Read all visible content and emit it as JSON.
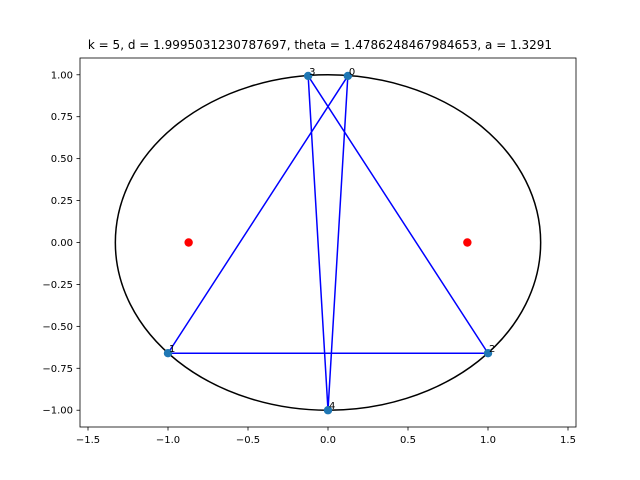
{
  "chart_data": {
    "type": "scatter",
    "title": "k = 5, d = 1.9995031230787697, theta = 1.4786248467984653, a = 1.3291",
    "xlim": [
      -1.55,
      1.55
    ],
    "ylim": [
      -1.1,
      1.1
    ],
    "x_ticks": [
      -1.5,
      -1.0,
      -0.5,
      0.0,
      0.5,
      1.0,
      1.5
    ],
    "x_tick_labels": [
      "−1.5",
      "−1.0",
      "−0.5",
      "0.0",
      "0.5",
      "1.0",
      "1.5"
    ],
    "y_ticks": [
      -1.0,
      -0.75,
      -0.5,
      -0.25,
      0.0,
      0.25,
      0.5,
      0.75,
      1.0
    ],
    "y_tick_labels": [
      "−1.00",
      "−0.75",
      "−0.50",
      "−0.25",
      "0.00",
      "0.25",
      "0.50",
      "0.75",
      "1.00"
    ],
    "grid": false,
    "ellipse": {
      "a": 1.3291,
      "b": 1.0,
      "color": "#000000"
    },
    "foci": {
      "points": [
        [
          -0.871,
          0.0
        ],
        [
          0.871,
          0.0
        ]
      ],
      "color": "#ff0000"
    },
    "points": [
      {
        "label": "0",
        "x": 0.124,
        "y": 0.993
      },
      {
        "label": "1",
        "x": -1.0,
        "y": -0.66
      },
      {
        "label": "2",
        "x": 1.0,
        "y": -0.66
      },
      {
        "label": "3",
        "x": -0.124,
        "y": 0.993
      },
      {
        "label": "4",
        "x": 0.0,
        "y": -1.0
      }
    ],
    "point_color": "#1f77b4",
    "path_order": [
      0,
      1,
      2,
      3,
      4,
      0
    ],
    "path_color": "#0000ff"
  }
}
